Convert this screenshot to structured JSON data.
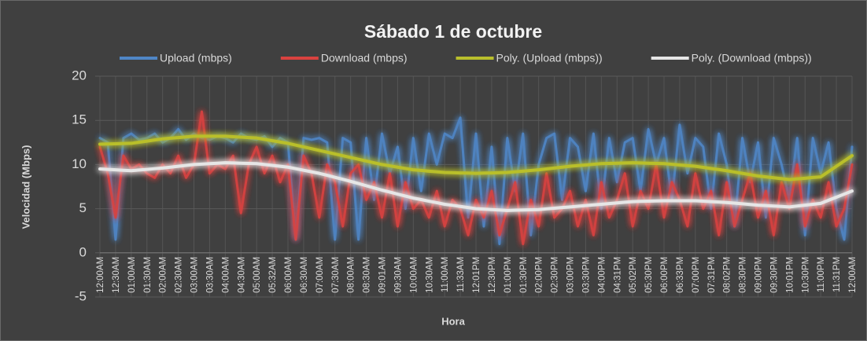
{
  "chart_data": {
    "type": "line",
    "title": "Sábado 1 de octubre",
    "x_label": "Hora",
    "y_label": "Velocidad (Mbps)",
    "ylim": [
      -5,
      20
    ],
    "yticks": [
      -5,
      0,
      5,
      10,
      15,
      20
    ],
    "grid": true,
    "legend": "top",
    "categories": [
      "12:00AM",
      null,
      "12:30AM",
      null,
      "01:00AM",
      null,
      "01:30AM",
      null,
      "02:00AM",
      null,
      "02:30AM",
      null,
      "03:00AM",
      null,
      "03:30AM",
      null,
      "04:00AM",
      null,
      "04:30AM",
      null,
      "05:00AM",
      null,
      "05:32AM",
      null,
      "06:00AM",
      null,
      "06:30AM",
      null,
      "07:00AM",
      null,
      "07:30AM",
      null,
      "08:00AM",
      null,
      "08:30AM",
      null,
      "09:01AM",
      null,
      "09:30AM",
      null,
      "10:00AM",
      null,
      "10:30AM",
      null,
      "11:00AM",
      null,
      "11:33AM",
      null,
      "12:01PM",
      null,
      "12:30PM",
      null,
      "01:00PM",
      null,
      "01:30PM",
      null,
      "02:00PM",
      null,
      "02:30PM",
      null,
      "03:00PM",
      null,
      "03:30PM",
      null,
      "04:00PM",
      null,
      "04:31PM",
      null,
      "05:02PM",
      null,
      "05:30PM",
      null,
      "06:00PM",
      null,
      "06:33PM",
      null,
      "07:00PM",
      null,
      "07:31PM",
      null,
      "08:02PM",
      null,
      "08:30PM",
      null,
      "09:00PM",
      null,
      "09:30PM",
      null,
      "10:01PM",
      null,
      "10:30PM",
      null,
      "11:00PM",
      null,
      "11:31PM",
      null,
      "12:00AM"
    ],
    "series": [
      {
        "name": "Upload (mbps)",
        "color": "#4f86c6",
        "values": [
          13,
          12.5,
          1.5,
          13,
          13.5,
          12.8,
          13,
          13.5,
          12.5,
          13,
          14,
          12.8,
          13.5,
          13,
          12.8,
          13.2,
          13,
          12.5,
          13.5,
          13,
          12.8,
          13.2,
          12,
          13,
          12.5,
          1.5,
          13,
          12.8,
          13,
          12.5,
          1.5,
          13,
          12.5,
          1.5,
          13,
          6,
          13.5,
          9,
          12,
          5,
          13,
          7,
          13.5,
          10,
          13.5,
          13,
          15.3,
          4,
          13.5,
          3,
          12,
          1,
          13,
          7,
          13.5,
          2,
          10,
          13,
          13.5,
          6,
          13,
          12,
          7,
          13.5,
          5,
          13,
          8,
          12.5,
          13,
          7,
          14,
          10,
          13,
          6,
          14.5,
          9,
          13,
          12,
          5,
          13.5,
          10,
          3,
          13,
          8,
          12.5,
          4,
          13,
          10,
          6,
          13,
          2,
          13,
          9,
          12.5,
          5,
          1.5,
          12
        ]
      },
      {
        "name": "Download (mbps)",
        "color": "#d9423f",
        "values": [
          12,
          9,
          4,
          11,
          9.5,
          10,
          9,
          8.5,
          10,
          9,
          11,
          8.5,
          10,
          16,
          9,
          10,
          9.5,
          11,
          4.5,
          10,
          12,
          9,
          11,
          8,
          10,
          1.5,
          11,
          9,
          4,
          10,
          8,
          3,
          9,
          10,
          6,
          8,
          4,
          9,
          3,
          8,
          5,
          6,
          4,
          7,
          3,
          6,
          5,
          2,
          6,
          4,
          7,
          2,
          5,
          8,
          1,
          6,
          3,
          9,
          4,
          5,
          7,
          3,
          6,
          2,
          8,
          4,
          6,
          9,
          3,
          7,
          5,
          10,
          4,
          8,
          6,
          3,
          9,
          5,
          7,
          2,
          8,
          3,
          6,
          9,
          4,
          7,
          2,
          8,
          5,
          10,
          3,
          6,
          4,
          8,
          3,
          5,
          10
        ]
      },
      {
        "name": "Poly. (Upload (mbps))",
        "color": "#b9bf2c",
        "values": [
          12.3,
          12.33,
          12.35,
          12.38,
          12.4,
          12.53,
          12.65,
          12.78,
          12.9,
          12.98,
          13.05,
          13.13,
          13.2,
          13.2,
          13.2,
          13.2,
          13.2,
          13.15,
          13.1,
          13.05,
          13,
          12.85,
          12.7,
          12.55,
          12.4,
          12.2,
          12,
          11.8,
          11.6,
          11.4,
          11.2,
          11,
          10.8,
          10.6,
          10.4,
          10.2,
          10,
          9.85,
          9.7,
          9.55,
          9.4,
          9.33,
          9.25,
          9.18,
          9.1,
          9.08,
          9.05,
          9.03,
          9,
          9.03,
          9.05,
          9.08,
          9.1,
          9.18,
          9.25,
          9.33,
          9.4,
          9.5,
          9.6,
          9.7,
          9.8,
          9.88,
          9.95,
          10.03,
          10.1,
          10.13,
          10.15,
          10.18,
          10.2,
          10.18,
          10.15,
          10.13,
          10.1,
          10.03,
          9.95,
          9.88,
          9.8,
          9.68,
          9.55,
          9.43,
          9.3,
          9.15,
          9,
          8.85,
          8.7,
          8.6,
          8.5,
          8.4,
          8.3,
          8.38,
          8.45,
          8.53,
          8.6,
          9.2,
          9.8,
          10.4,
          11
        ]
      },
      {
        "name": "Poly. (Download (mbps))",
        "color": "#e6e6e6",
        "values": [
          9.5,
          9.45,
          9.4,
          9.35,
          9.3,
          9.38,
          9.45,
          9.53,
          9.6,
          9.7,
          9.8,
          9.9,
          10,
          10.05,
          10.1,
          10.15,
          10.2,
          10.18,
          10.15,
          10.13,
          10.1,
          10,
          9.9,
          9.8,
          9.7,
          9.53,
          9.35,
          9.18,
          9,
          8.78,
          8.55,
          8.33,
          8.1,
          7.85,
          7.6,
          7.35,
          7.1,
          6.88,
          6.65,
          6.43,
          6.2,
          6.03,
          5.85,
          5.68,
          5.5,
          5.38,
          5.25,
          5.13,
          5,
          4.95,
          4.9,
          4.85,
          4.8,
          4.83,
          4.85,
          4.88,
          4.9,
          4.98,
          5.05,
          5.13,
          5.2,
          5.28,
          5.35,
          5.43,
          5.5,
          5.58,
          5.65,
          5.73,
          5.8,
          5.83,
          5.85,
          5.88,
          5.9,
          5.9,
          5.9,
          5.9,
          5.9,
          5.85,
          5.8,
          5.75,
          5.7,
          5.63,
          5.55,
          5.48,
          5.4,
          5.35,
          5.3,
          5.25,
          5.2,
          5.3,
          5.4,
          5.5,
          5.6,
          5.95,
          6.3,
          6.65,
          7
        ]
      }
    ]
  }
}
